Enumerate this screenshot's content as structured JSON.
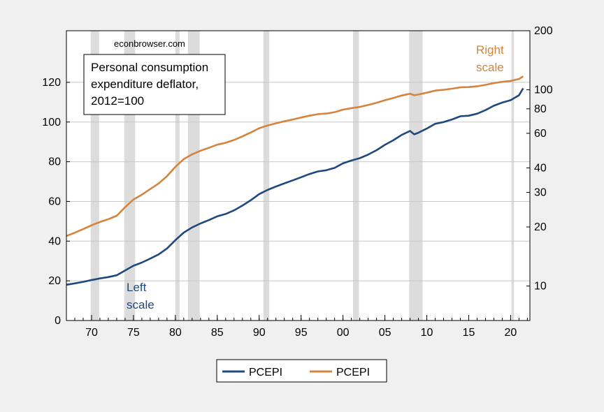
{
  "chart_data": {
    "type": "line",
    "source_label": "econbrowser.com",
    "annotation_box": [
      "Personal consumption",
      "expenditure deflator,",
      "2012=100"
    ],
    "left_scale_label": [
      "Left",
      "scale"
    ],
    "right_scale_label": [
      "Right",
      "scale"
    ],
    "xlim": [
      1967,
      2022.3
    ],
    "x_ticks": [
      1970,
      1975,
      1980,
      1985,
      1990,
      1995,
      2000,
      2005,
      2010,
      2015,
      2020
    ],
    "x_tick_labels": [
      "70",
      "75",
      "80",
      "85",
      "90",
      "95",
      "00",
      "05",
      "10",
      "15",
      "20"
    ],
    "left_axis": {
      "scale": "linear",
      "ylim": [
        0,
        146
      ],
      "ticks": [
        0,
        20,
        40,
        60,
        80,
        100,
        120
      ]
    },
    "right_axis": {
      "scale": "log",
      "ylim": [
        6.67,
        200
      ],
      "ticks": [
        10,
        20,
        30,
        40,
        60,
        80,
        100,
        200
      ]
    },
    "grid": true,
    "legend_position": "bottom-center",
    "recessions": [
      [
        1969.9,
        1970.9
      ],
      [
        1973.9,
        1975.2
      ],
      [
        1980.0,
        1980.5
      ],
      [
        1981.5,
        1982.9
      ],
      [
        1990.5,
        1991.2
      ],
      [
        2001.2,
        2001.9
      ],
      [
        2007.9,
        2009.5
      ],
      [
        2020.1,
        2020.4
      ]
    ],
    "x": [
      1967,
      1968,
      1969,
      1970,
      1971,
      1972,
      1973,
      1974,
      1975,
      1976,
      1977,
      1978,
      1979,
      1980,
      1981,
      1982,
      1983,
      1984,
      1985,
      1986,
      1987,
      1988,
      1989,
      1990,
      1991,
      1992,
      1993,
      1994,
      1995,
      1996,
      1997,
      1998,
      1999,
      2000,
      2001,
      2002,
      2003,
      2004,
      2005,
      2006,
      2007,
      2008,
      2008.5,
      2009,
      2010,
      2011,
      2012,
      2013,
      2014,
      2015,
      2016,
      2017,
      2018,
      2019,
      2020,
      2021,
      2021.5
    ],
    "series": [
      {
        "name": "PCEPI",
        "axis": "left",
        "color": "#1f497d",
        "values": [
          18.0,
          18.7,
          19.5,
          20.4,
          21.2,
          21.9,
          22.8,
          25.2,
          27.6,
          29.2,
          31.2,
          33.3,
          36.3,
          40.5,
          44.3,
          46.9,
          48.9,
          50.6,
          52.5,
          53.7,
          55.5,
          57.9,
          60.6,
          63.7,
          65.8,
          67.5,
          69.1,
          70.6,
          72.2,
          73.8,
          75.1,
          75.7,
          76.9,
          79.2,
          80.6,
          81.8,
          83.6,
          85.8,
          88.5,
          90.8,
          93.5,
          95.5,
          93.8,
          94.6,
          96.7,
          99.1,
          100.0,
          101.3,
          102.9,
          103.2,
          104.2,
          106.0,
          108.2,
          109.8,
          111.0,
          113.5,
          117.0
        ]
      },
      {
        "name": "PCEPI",
        "axis": "right",
        "color": "#d4843d",
        "values": [
          18.0,
          18.7,
          19.5,
          20.4,
          21.2,
          21.9,
          22.8,
          25.2,
          27.6,
          29.2,
          31.2,
          33.3,
          36.3,
          40.5,
          44.3,
          46.9,
          48.9,
          50.6,
          52.5,
          53.7,
          55.5,
          57.9,
          60.6,
          63.7,
          65.8,
          67.5,
          69.1,
          70.6,
          72.2,
          73.8,
          75.1,
          75.7,
          76.9,
          79.2,
          80.6,
          81.8,
          83.6,
          85.8,
          88.5,
          90.8,
          93.5,
          95.5,
          93.8,
          94.6,
          96.7,
          99.1,
          100.0,
          101.3,
          102.9,
          103.2,
          104.2,
          106.0,
          108.2,
          109.8,
          111.0,
          113.5,
          117.0
        ]
      }
    ]
  }
}
